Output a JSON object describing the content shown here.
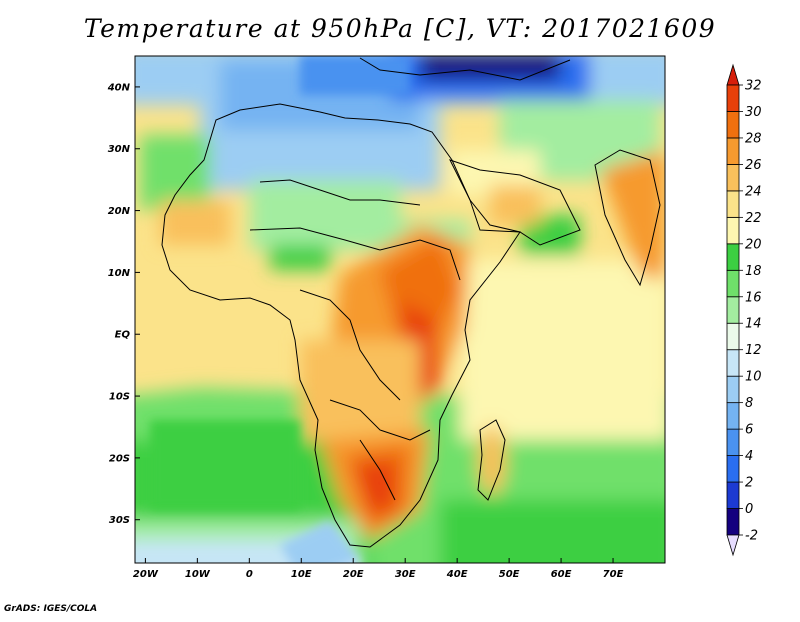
{
  "title": "Temperature at 950hPa [C], VT: 2017021609",
  "credit": "GrADS: IGES/COLA",
  "map": {
    "lon_range": [
      -22,
      80
    ],
    "lat_range": [
      -37,
      45
    ],
    "x_ticks": [
      {
        "lon": -20,
        "label": "20W"
      },
      {
        "lon": -10,
        "label": "10W"
      },
      {
        "lon": 0,
        "label": "0"
      },
      {
        "lon": 10,
        "label": "10E"
      },
      {
        "lon": 20,
        "label": "20E"
      },
      {
        "lon": 30,
        "label": "30E"
      },
      {
        "lon": 40,
        "label": "40E"
      },
      {
        "lon": 50,
        "label": "50E"
      },
      {
        "lon": 60,
        "label": "60E"
      },
      {
        "lon": 70,
        "label": "70E"
      }
    ],
    "y_ticks": [
      {
        "lat": 40,
        "label": "40N"
      },
      {
        "lat": 30,
        "label": "30N"
      },
      {
        "lat": 20,
        "label": "20N"
      },
      {
        "lat": 10,
        "label": "10N"
      },
      {
        "lat": 0,
        "label": "EQ"
      },
      {
        "lat": -10,
        "label": "10S"
      },
      {
        "lat": -20,
        "label": "20S"
      },
      {
        "lat": -30,
        "label": "30S"
      }
    ]
  },
  "colorbar": {
    "levels": [
      "-2",
      "0",
      "2",
      "4",
      "6",
      "8",
      "10",
      "12",
      "14",
      "16",
      "18",
      "20",
      "22",
      "24",
      "26",
      "28",
      "30",
      "32"
    ],
    "colors": [
      "#e6dcff",
      "#14007f",
      "#1c3ad2",
      "#2a6ef0",
      "#4a92f0",
      "#74b3f2",
      "#9ccdf3",
      "#c7e6f7",
      "#ebfaea",
      "#a3eda0",
      "#6fe06a",
      "#3ccf42",
      "#fdf7b1",
      "#fbe38a",
      "#f9c05c",
      "#f69a2f",
      "#f0700f",
      "#e8400a",
      "#d61f0b"
    ]
  }
}
